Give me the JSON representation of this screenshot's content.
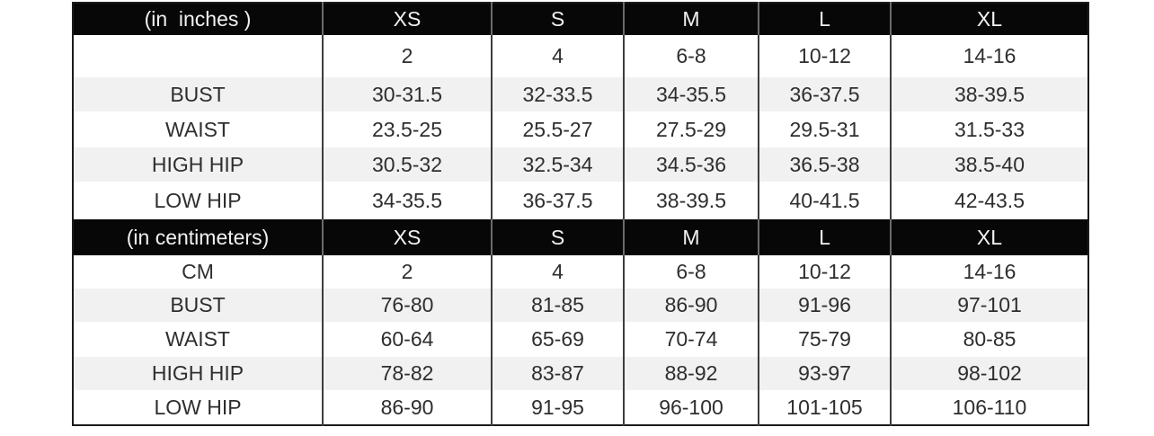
{
  "chart_data": {
    "type": "table",
    "columns": [
      "",
      "XS",
      "S",
      "M",
      "L",
      "XL"
    ],
    "sections": [
      {
        "unit_label": "(in  inches )",
        "size_headers": [
          "XS",
          "S",
          "M",
          "L",
          "XL"
        ],
        "rows": [
          {
            "label": "",
            "values": [
              "2",
              "4",
              "6-8",
              "10-12",
              "14-16"
            ]
          },
          {
            "label": "BUST",
            "values": [
              "30-31.5",
              "32-33.5",
              "34-35.5",
              "36-37.5",
              "38-39.5"
            ]
          },
          {
            "label": "WAIST",
            "values": [
              "23.5-25",
              "25.5-27",
              "27.5-29",
              "29.5-31",
              "31.5-33"
            ]
          },
          {
            "label": "HIGH HIP",
            "values": [
              "30.5-32",
              "32.5-34",
              "34.5-36",
              "36.5-38",
              "38.5-40"
            ]
          },
          {
            "label": "LOW HIP",
            "values": [
              "34-35.5",
              "36-37.5",
              "38-39.5",
              "40-41.5",
              "42-43.5"
            ]
          }
        ]
      },
      {
        "unit_label": "(in centimeters)",
        "size_headers": [
          "XS",
          "S",
          "M",
          "L",
          "XL"
        ],
        "rows": [
          {
            "label": "CM",
            "values": [
              "2",
              "4",
              "6-8",
              "10-12",
              "14-16"
            ]
          },
          {
            "label": "BUST",
            "values": [
              "76-80",
              "81-85",
              "86-90",
              "91-96",
              "97-101"
            ]
          },
          {
            "label": "WAIST",
            "values": [
              "60-64",
              "65-69",
              "70-74",
              "75-79",
              "80-85"
            ]
          },
          {
            "label": "HIGH HIP",
            "values": [
              "78-82",
              "83-87",
              "88-92",
              "93-97",
              "98-102"
            ]
          },
          {
            "label": "LOW HIP",
            "values": [
              "86-90",
              "91-95",
              "96-100",
              "101-105",
              "106-110"
            ]
          }
        ]
      }
    ],
    "layout_hints": {
      "header_style": "black bar with white text",
      "zebra_striped_rows": [
        "BUST",
        "HIGH HIP"
      ]
    }
  },
  "colors": {
    "header_bg": "#070707",
    "header_text": "#f1f1f1",
    "stripe_bg": "#f1f1f1",
    "row_bg": "#ffffff",
    "border": "#1b1b1b",
    "inner_border": "#3d3d3d",
    "text": "#2e2e2e"
  }
}
